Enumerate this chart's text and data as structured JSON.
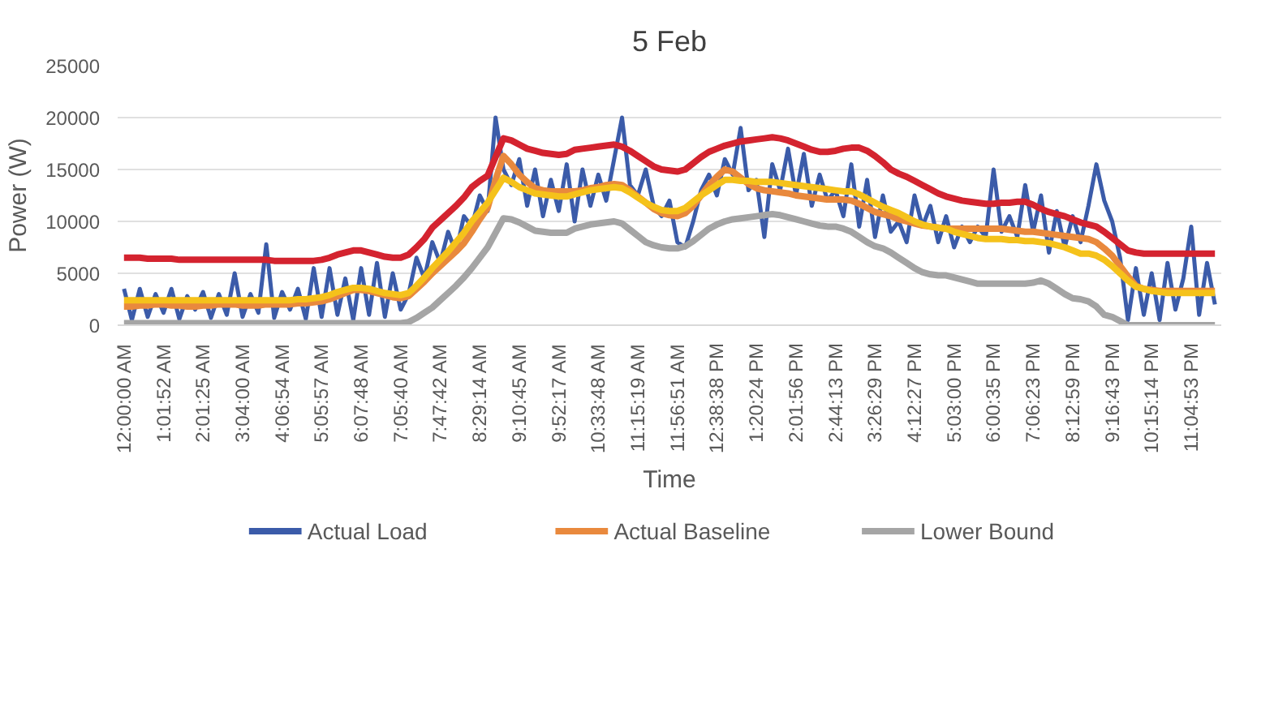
{
  "chart_data": {
    "type": "line",
    "title": "5 Feb",
    "xlabel": "Time",
    "ylabel": "Power (W)",
    "categories": [
      "12:00:00 AM",
      null,
      null,
      null,
      null,
      "1:01:52 AM",
      null,
      null,
      null,
      null,
      "2:01:25 AM",
      null,
      null,
      null,
      null,
      "3:04:00 AM",
      null,
      null,
      null,
      null,
      "4:06:54 AM",
      null,
      null,
      null,
      null,
      "5:05:57 AM",
      null,
      null,
      null,
      null,
      "6:07:48 AM",
      null,
      null,
      null,
      null,
      "7:05:40 AM",
      null,
      null,
      null,
      null,
      "7:47:42 AM",
      null,
      null,
      null,
      null,
      "8:29:14 AM",
      null,
      null,
      null,
      null,
      "9:10:45 AM",
      null,
      null,
      null,
      null,
      "9:52:17 AM",
      null,
      null,
      null,
      null,
      "10:33:48 AM",
      null,
      null,
      null,
      null,
      "11:15:19 AM",
      null,
      null,
      null,
      null,
      "11:56:51 AM",
      null,
      null,
      null,
      null,
      "12:38:38 PM",
      null,
      null,
      null,
      null,
      "1:20:24 PM",
      null,
      null,
      null,
      null,
      "2:01:56 PM",
      null,
      null,
      null,
      null,
      "2:44:13 PM",
      null,
      null,
      null,
      null,
      "3:26:29 PM",
      null,
      null,
      null,
      null,
      "4:12:27 PM",
      null,
      null,
      null,
      null,
      "5:03:00 PM",
      null,
      null,
      null,
      null,
      "6:00:35 PM",
      null,
      null,
      null,
      null,
      "7:06:23 PM",
      null,
      null,
      null,
      null,
      "8:12:59 PM",
      null,
      null,
      null,
      null,
      "9:16:43 PM",
      null,
      null,
      null,
      null,
      "10:15:14 PM",
      null,
      null,
      null,
      null,
      "11:04:53 PM",
      null,
      null,
      null
    ],
    "series": [
      {
        "name": "Actual Load",
        "color": "#3b5ba9",
        "values": [
          3500,
          500,
          3500,
          800,
          3000,
          1200,
          3500,
          600,
          2800,
          1500,
          3200,
          700,
          3000,
          1000,
          5000,
          800,
          3000,
          1200,
          7800,
          700,
          3200,
          1500,
          3500,
          600,
          5500,
          800,
          5500,
          1000,
          4500,
          500,
          5500,
          1000,
          6000,
          800,
          5000,
          1500,
          3000,
          6500,
          4500,
          8000,
          6000,
          9000,
          7000,
          10500,
          9500,
          12500,
          11000,
          20000,
          15000,
          13500,
          16000,
          11500,
          15000,
          10500,
          14000,
          11000,
          15500,
          10000,
          15000,
          11500,
          14500,
          12000,
          16000,
          20000,
          13500,
          12500,
          15000,
          11500,
          10500,
          12000,
          8000,
          7500,
          10000,
          13000,
          14500,
          12500,
          16000,
          14500,
          19000,
          13000,
          14000,
          8500,
          15500,
          13000,
          17000,
          12500,
          16500,
          11500,
          14500,
          12000,
          13000,
          10500,
          15500,
          9500,
          14000,
          8500,
          12500,
          9000,
          10000,
          8000,
          12500,
          9500,
          11500,
          8000,
          10500,
          7500,
          9500,
          8000,
          9500,
          8500,
          15000,
          9000,
          10500,
          8500,
          13500,
          9000,
          12500,
          7000,
          11000,
          7500,
          10500,
          8000,
          11500,
          15500,
          12000,
          10000,
          6500,
          500,
          5500,
          1000,
          5000,
          500,
          6000,
          1500,
          4500,
          9500,
          1000,
          6000,
          2000
        ]
      },
      {
        "name": "Actual Baseline",
        "color": "#e9893d",
        "values": [
          1800,
          1800,
          1900,
          1900,
          2000,
          2000,
          1900,
          1900,
          1800,
          1800,
          1900,
          1900,
          2000,
          2000,
          2000,
          1900,
          1900,
          1900,
          2000,
          2000,
          2000,
          2000,
          2100,
          2100,
          2200,
          2300,
          2500,
          2800,
          3100,
          3400,
          3400,
          3300,
          3100,
          2900,
          2700,
          2600,
          2800,
          3500,
          4200,
          5000,
          5700,
          6400,
          7100,
          7900,
          9000,
          10200,
          11300,
          14000,
          16300,
          15500,
          14500,
          13800,
          13200,
          13000,
          12900,
          12900,
          12900,
          12900,
          13000,
          13200,
          13300,
          13500,
          13600,
          13500,
          13000,
          12400,
          11800,
          11200,
          10800,
          10600,
          10500,
          10800,
          11500,
          12500,
          13500,
          14300,
          15000,
          14800,
          14200,
          13600,
          13200,
          13000,
          12900,
          12800,
          12700,
          12500,
          12400,
          12300,
          12200,
          12100,
          12100,
          12100,
          12000,
          11700,
          11300,
          10900,
          10700,
          10500,
          10200,
          10000,
          9800,
          9600,
          9500,
          9400,
          9300,
          9300,
          9300,
          9300,
          9300,
          9300,
          9300,
          9300,
          9200,
          9100,
          9000,
          9000,
          8900,
          8800,
          8700,
          8600,
          8500,
          8400,
          8300,
          8000,
          7400,
          6700,
          5700,
          4700,
          3800,
          3500,
          3400,
          3300,
          3300,
          3300,
          3300,
          3300,
          3300,
          3300,
          3300
        ]
      },
      {
        "name": "Lower Bound",
        "color": "#a5a5a5",
        "values": [
          200,
          200,
          200,
          200,
          200,
          200,
          200,
          200,
          200,
          200,
          200,
          200,
          200,
          200,
          200,
          200,
          200,
          200,
          200,
          200,
          200,
          200,
          200,
          200,
          200,
          200,
          200,
          200,
          200,
          200,
          200,
          200,
          200,
          200,
          200,
          200,
          300,
          700,
          1200,
          1700,
          2400,
          3100,
          3800,
          4600,
          5500,
          6500,
          7500,
          8900,
          10300,
          10200,
          9900,
          9500,
          9100,
          9000,
          8900,
          8900,
          8900,
          9300,
          9500,
          9700,
          9800,
          9900,
          10000,
          9800,
          9200,
          8600,
          8000,
          7700,
          7500,
          7400,
          7400,
          7600,
          8100,
          8700,
          9300,
          9700,
          10000,
          10200,
          10300,
          10400,
          10500,
          10600,
          10700,
          10600,
          10400,
          10200,
          10000,
          9800,
          9600,
          9500,
          9500,
          9300,
          9000,
          8500,
          8000,
          7600,
          7400,
          7000,
          6500,
          6000,
          5500,
          5100,
          4900,
          4800,
          4800,
          4600,
          4400,
          4200,
          4000,
          4000,
          4000,
          4000,
          4000,
          4000,
          4000,
          4100,
          4300,
          4000,
          3500,
          3000,
          2600,
          2500,
          2300,
          1800,
          1000,
          800,
          400,
          0,
          0,
          0,
          0,
          0,
          0,
          0,
          0,
          0,
          0,
          0,
          0
        ]
      },
      {
        "color": "#f5c21b",
        "values": [
          2400,
          2400,
          2400,
          2400,
          2400,
          2400,
          2400,
          2400,
          2400,
          2400,
          2400,
          2400,
          2400,
          2400,
          2400,
          2400,
          2400,
          2400,
          2400,
          2400,
          2400,
          2400,
          2500,
          2500,
          2600,
          2700,
          2900,
          3200,
          3400,
          3600,
          3600,
          3500,
          3300,
          3100,
          3000,
          2900,
          3100,
          3800,
          4600,
          5500,
          6300,
          7100,
          8000,
          8900,
          10000,
          10900,
          11800,
          13000,
          14200,
          13800,
          13300,
          13000,
          12700,
          12600,
          12500,
          12400,
          12400,
          12600,
          12800,
          13000,
          13100,
          13200,
          13300,
          13200,
          12800,
          12300,
          11800,
          11400,
          11100,
          11000,
          11000,
          11300,
          11900,
          12500,
          13000,
          13500,
          14000,
          14000,
          13900,
          13900,
          13800,
          13800,
          13800,
          13700,
          13600,
          13500,
          13400,
          13300,
          13200,
          13100,
          13000,
          12900,
          12900,
          12600,
          12200,
          11800,
          11400,
          11100,
          10800,
          10400,
          10000,
          9700,
          9500,
          9400,
          9300,
          9000,
          8800,
          8600,
          8400,
          8300,
          8300,
          8300,
          8200,
          8200,
          8100,
          8100,
          8000,
          7900,
          7700,
          7500,
          7200,
          6900,
          6900,
          6700,
          6300,
          5700,
          5000,
          4300,
          3700,
          3500,
          3300,
          3200,
          3100,
          3100,
          3100,
          3100,
          3100,
          3100,
          3100
        ]
      },
      {
        "color": "#d4232f",
        "values": [
          6500,
          6500,
          6500,
          6400,
          6400,
          6400,
          6400,
          6300,
          6300,
          6300,
          6300,
          6300,
          6300,
          6300,
          6300,
          6300,
          6300,
          6300,
          6300,
          6200,
          6200,
          6200,
          6200,
          6200,
          6200,
          6300,
          6500,
          6800,
          7000,
          7200,
          7200,
          7000,
          6800,
          6600,
          6500,
          6500,
          6800,
          7500,
          8300,
          9400,
          10100,
          10800,
          11500,
          12300,
          13300,
          13900,
          14400,
          16200,
          18000,
          17800,
          17400,
          17000,
          16800,
          16600,
          16500,
          16400,
          16500,
          16900,
          17000,
          17100,
          17200,
          17300,
          17400,
          17200,
          16800,
          16300,
          15800,
          15300,
          15000,
          14900,
          14800,
          15000,
          15600,
          16200,
          16700,
          17000,
          17300,
          17500,
          17700,
          17800,
          17900,
          18000,
          18100,
          18000,
          17800,
          17500,
          17200,
          16900,
          16700,
          16700,
          16800,
          17000,
          17100,
          17100,
          16800,
          16300,
          15700,
          15000,
          14600,
          14300,
          13900,
          13500,
          13100,
          12700,
          12400,
          12200,
          12000,
          11900,
          11800,
          11700,
          11700,
          11800,
          11800,
          11900,
          11900,
          11600,
          11200,
          10900,
          10700,
          10500,
          10200,
          9900,
          9700,
          9500,
          9000,
          8400,
          7800,
          7200,
          7000,
          6900,
          6900,
          6900,
          6900,
          6900,
          6900,
          6900,
          6900,
          6900,
          6900
        ]
      }
    ],
    "ylim": [
      0,
      25000
    ],
    "yticks": [
      0,
      5000,
      10000,
      15000,
      20000,
      25000
    ],
    "grid": "y",
    "legend": "bottom",
    "line_style": "solid",
    "marker": "none"
  }
}
